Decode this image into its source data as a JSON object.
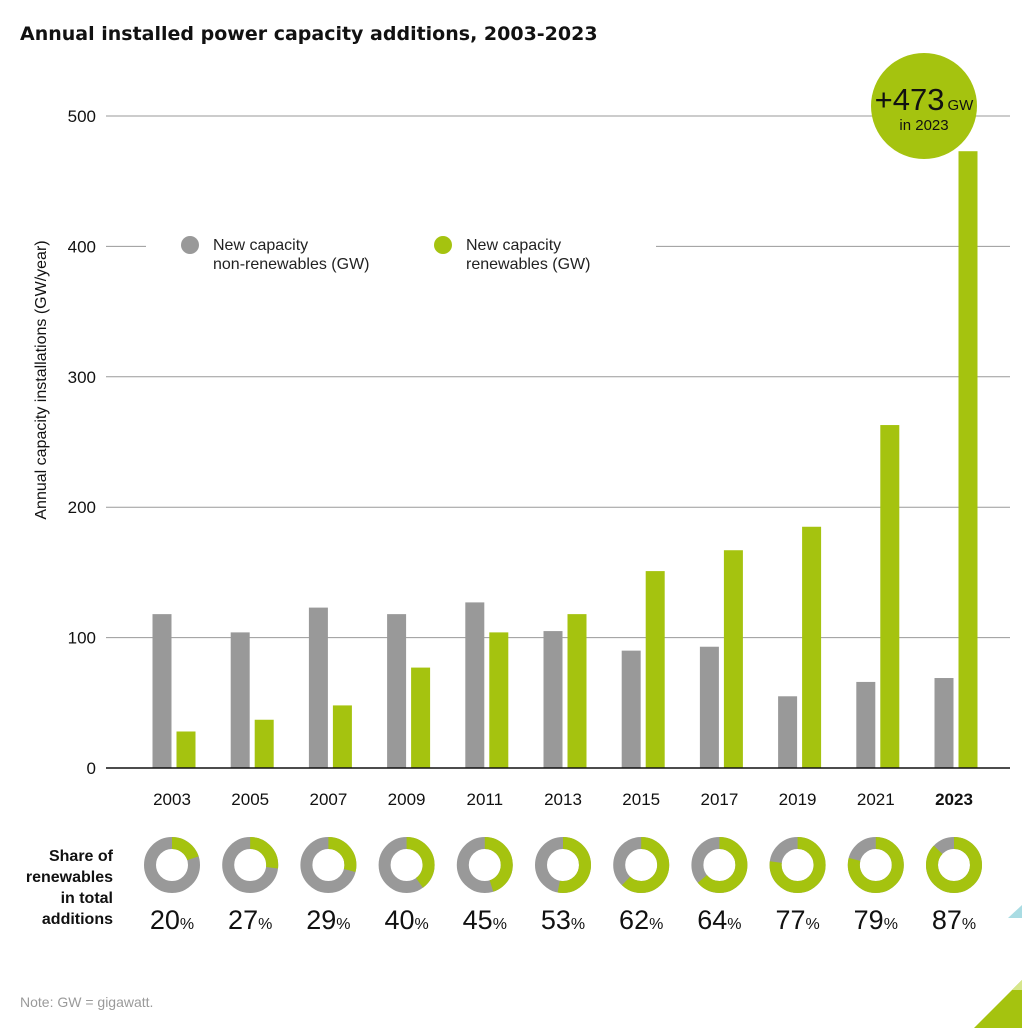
{
  "chart_data": {
    "type": "bar",
    "title": "Annual installed power capacity additions, 2003-2023",
    "ylabel": "Annual capacity installations (GW/year)",
    "xlabel": "",
    "ylim": [
      0,
      500
    ],
    "yticks": [
      0,
      100,
      200,
      300,
      400,
      500
    ],
    "grid": true,
    "legend_placement": "top-left",
    "categories": [
      "2003",
      "2005",
      "2007",
      "2009",
      "2011",
      "2013",
      "2015",
      "2017",
      "2019",
      "2021",
      "2023"
    ],
    "highlight_category": "2023",
    "series": [
      {
        "name": "New capacity non-renewables (GW)",
        "legend_lines": [
          "New capacity",
          "non-renewables (GW)"
        ],
        "color": "#999999",
        "values": [
          118,
          104,
          123,
          118,
          127,
          105,
          90,
          93,
          55,
          66,
          69
        ]
      },
      {
        "name": "New capacity renewables (GW)",
        "legend_lines": [
          "New capacity",
          "renewables (GW)"
        ],
        "color": "#a5c30f",
        "values": [
          28,
          37,
          48,
          77,
          104,
          118,
          151,
          167,
          185,
          263,
          473
        ]
      }
    ],
    "share": {
      "label_lines": [
        "Share of",
        "renewables",
        "in total",
        "additions"
      ],
      "values": [
        20,
        27,
        29,
        40,
        45,
        53,
        62,
        64,
        77,
        79,
        87
      ],
      "unit": "%"
    },
    "badge": {
      "value": "+473",
      "unit": "GW",
      "sub": "in 2023",
      "color": "#a5c30f"
    }
  },
  "note": "Note: GW = gigawatt."
}
